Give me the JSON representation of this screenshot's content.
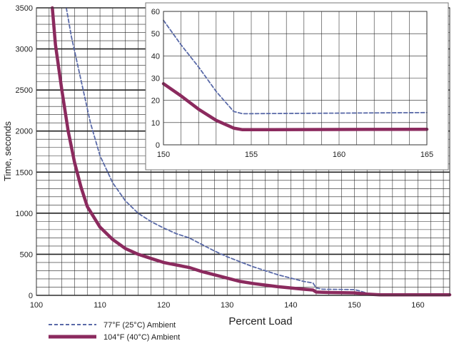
{
  "chart_data": [
    {
      "type": "line",
      "xlabel": "Percent Load",
      "ylabel": "Time, seconds",
      "xlim": [
        100,
        165
      ],
      "ylim": [
        0,
        3500
      ],
      "xticks": [
        100,
        110,
        120,
        130,
        140,
        150,
        160
      ],
      "yticks": [
        0,
        500,
        1000,
        1500,
        2000,
        2500,
        3000,
        3500
      ],
      "grid": true,
      "legend_position": "bottom-left",
      "series": [
        {
          "name": "77°F (25°C) Ambient",
          "style": "dashed",
          "color": "#5a6aa8",
          "points": [
            [
              104.7,
              3500
            ],
            [
              105.5,
              3150
            ],
            [
              106.5,
              2800
            ],
            [
              107.5,
              2450
            ],
            [
              108.5,
              2100
            ],
            [
              110,
              1700
            ],
            [
              112,
              1370
            ],
            [
              114,
              1150
            ],
            [
              116,
              1000
            ],
            [
              118,
              900
            ],
            [
              120,
              820
            ],
            [
              122,
              750
            ],
            [
              124,
              700
            ],
            [
              126,
              620
            ],
            [
              128,
              540
            ],
            [
              130,
              470
            ],
            [
              132,
              410
            ],
            [
              134,
              350
            ],
            [
              136,
              300
            ],
            [
              138,
              250
            ],
            [
              140,
              210
            ],
            [
              142,
              170
            ],
            [
              143.5,
              150
            ],
            [
              144,
              90
            ],
            [
              145,
              75
            ],
            [
              150,
              70
            ],
            [
              151,
              50
            ],
            [
              152,
              25
            ],
            [
              153,
              15
            ],
            [
              165,
              15
            ]
          ]
        },
        {
          "name": "104°F (40°C) Ambient",
          "style": "solid",
          "color": "#8b2a5e",
          "points": [
            [
              102.5,
              3500
            ],
            [
              103,
              3050
            ],
            [
              104,
              2500
            ],
            [
              105,
              2000
            ],
            [
              106,
              1620
            ],
            [
              107,
              1320
            ],
            [
              108,
              1080
            ],
            [
              110,
              830
            ],
            [
              112,
              680
            ],
            [
              114,
              570
            ],
            [
              116,
              500
            ],
            [
              118,
              450
            ],
            [
              120,
              400
            ],
            [
              122,
              370
            ],
            [
              124,
              340
            ],
            [
              126,
              290
            ],
            [
              128,
              250
            ],
            [
              130,
              210
            ],
            [
              132,
              170
            ],
            [
              134,
              145
            ],
            [
              136,
              125
            ],
            [
              138,
              105
            ],
            [
              140,
              90
            ],
            [
              142,
              75
            ],
            [
              143.5,
              65
            ],
            [
              144,
              40
            ],
            [
              146,
              35
            ],
            [
              150,
              30
            ],
            [
              152,
              15
            ],
            [
              154,
              7
            ],
            [
              165,
              7
            ]
          ]
        }
      ]
    },
    {
      "type": "line",
      "xlim": [
        150,
        165
      ],
      "ylim": [
        0,
        60
      ],
      "xticks": [
        150,
        155,
        160,
        165
      ],
      "yticks": [
        0,
        10,
        20,
        30,
        40,
        50,
        60
      ],
      "grid": true,
      "series": [
        {
          "name": "77°F (25°C) Ambient",
          "style": "dashed",
          "color": "#5a6aa8",
          "points": [
            [
              150,
              56
            ],
            [
              151,
              45
            ],
            [
              152,
              35
            ],
            [
              153,
              24
            ],
            [
              154,
              15
            ],
            [
              154.5,
              14
            ],
            [
              165,
              14.5
            ]
          ]
        },
        {
          "name": "104°F (40°C) Ambient",
          "style": "solid",
          "color": "#8b2a5e",
          "points": [
            [
              150,
              27.5
            ],
            [
              151,
              22
            ],
            [
              152,
              16
            ],
            [
              153,
              11
            ],
            [
              154,
              7.5
            ],
            [
              154.5,
              6.8
            ],
            [
              165,
              7
            ]
          ]
        }
      ]
    }
  ]
}
